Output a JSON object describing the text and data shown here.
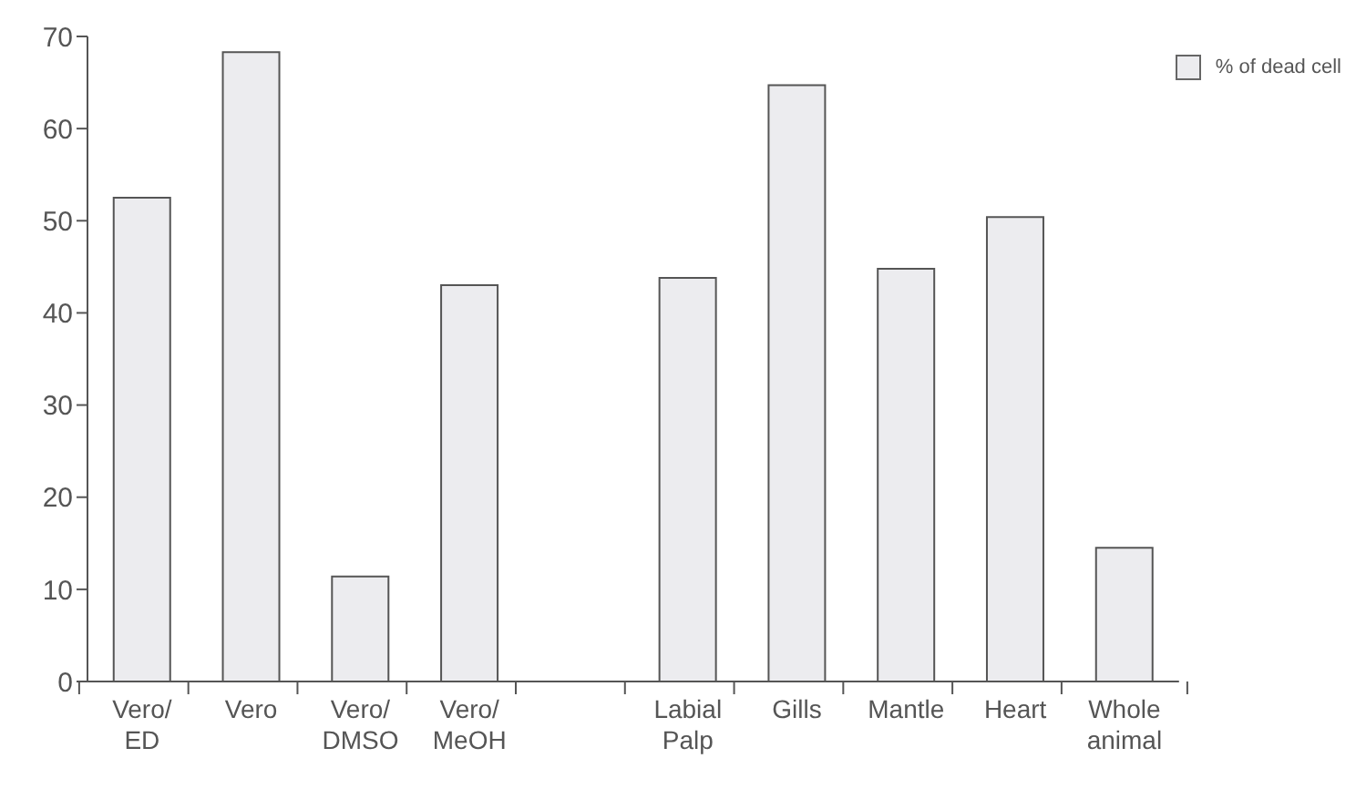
{
  "chart_data": {
    "type": "bar",
    "categories": [
      "Vero/\nED",
      "Vero",
      "Vero/\nDMSO",
      "Vero/\nMeOH",
      null,
      "Labial\nPalp",
      "Gills",
      "Mantle",
      "Heart",
      "Whole\nanimal"
    ],
    "series": [
      {
        "name": "% of dead cell",
        "color": "#ececef",
        "values": [
          52.5,
          68.3,
          11.4,
          43.0,
          null,
          43.8,
          64.7,
          44.8,
          50.4,
          14.5
        ]
      }
    ],
    "ylim": [
      0,
      70
    ],
    "yticks": [
      0,
      10,
      20,
      30,
      40,
      50,
      60,
      70
    ],
    "grid": false,
    "legend": "top right"
  }
}
